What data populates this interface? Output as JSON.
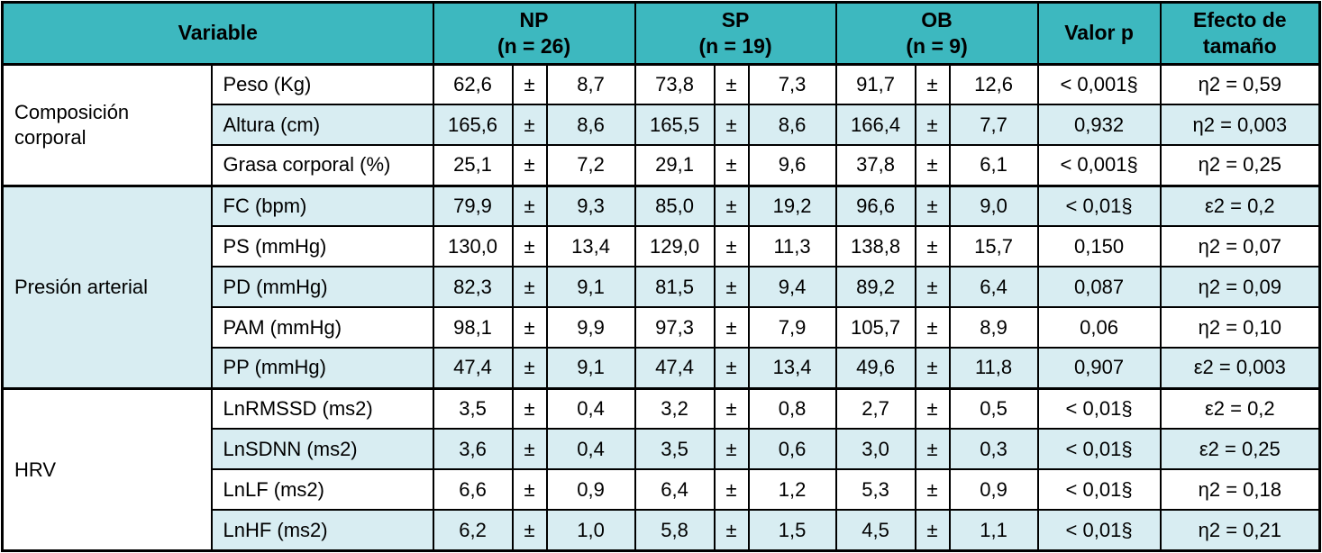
{
  "colors": {
    "header_bg": "#3db8bf",
    "row_alt_bg": "#d8edf2",
    "border": "#000000"
  },
  "table": {
    "header": {
      "variable_label": "Variable",
      "groups": [
        {
          "label": "NP",
          "n": "(n = 26)"
        },
        {
          "label": "SP",
          "n": "(n = 19)"
        },
        {
          "label": "OB",
          "n": "(n = 9)"
        }
      ],
      "p_label": "Valor p",
      "effect_label": "Efecto de tamaño"
    },
    "sections": [
      {
        "name": "Composición corporal",
        "rows": [
          {
            "variable": "Peso (Kg)",
            "np": [
              "62,6",
              "±",
              "8,7"
            ],
            "sp": [
              "73,8",
              "±",
              "7,3"
            ],
            "ob": [
              "91,7",
              "±",
              "12,6"
            ],
            "p": "< 0,001§",
            "effect": "η2 = 0,59"
          },
          {
            "variable": "Altura (cm)",
            "np": [
              "165,6",
              "±",
              "8,6"
            ],
            "sp": [
              "165,5",
              "±",
              "8,6"
            ],
            "ob": [
              "166,4",
              "±",
              "7,7"
            ],
            "p": "0,932",
            "effect": "η2 = 0,003"
          },
          {
            "variable": "Grasa corporal (%)",
            "np": [
              "25,1",
              "±",
              "7,2"
            ],
            "sp": [
              "29,1",
              "±",
              "9,6"
            ],
            "ob": [
              "37,8",
              "±",
              "6,1"
            ],
            "p": "< 0,001§",
            "effect": "η2 = 0,25"
          }
        ]
      },
      {
        "name": "Presión arterial",
        "rows": [
          {
            "variable": "FC (bpm)",
            "np": [
              "79,9",
              "±",
              "9,3"
            ],
            "sp": [
              "85,0",
              "±",
              "19,2"
            ],
            "ob": [
              "96,6",
              "±",
              "9,0"
            ],
            "p": "< 0,01§",
            "effect": "ε2 = 0,2"
          },
          {
            "variable": "PS (mmHg)",
            "np": [
              "130,0",
              "±",
              "13,4"
            ],
            "sp": [
              "129,0",
              "±",
              "11,3"
            ],
            "ob": [
              "138,8",
              "±",
              "15,7"
            ],
            "p": "0,150",
            "effect": "η2 = 0,07"
          },
          {
            "variable": "PD (mmHg)",
            "np": [
              "82,3",
              "±",
              "9,1"
            ],
            "sp": [
              "81,5",
              "±",
              "9,4"
            ],
            "ob": [
              "89,2",
              "±",
              "6,4"
            ],
            "p": "0,087",
            "effect": "η2 = 0,09"
          },
          {
            "variable": "PAM (mmHg)",
            "np": [
              "98,1",
              "±",
              "9,9"
            ],
            "sp": [
              "97,3",
              "±",
              "7,9"
            ],
            "ob": [
              "105,7",
              "±",
              "8,9"
            ],
            "p": "0,06",
            "effect": "η2 = 0,10"
          },
          {
            "variable": "PP (mmHg)",
            "np": [
              "47,4",
              "±",
              "9,1"
            ],
            "sp": [
              "47,4",
              "±",
              "13,4"
            ],
            "ob": [
              "49,6",
              "±",
              "11,8"
            ],
            "p": "0,907",
            "effect": "ε2 = 0,003"
          }
        ]
      },
      {
        "name": "HRV",
        "rows": [
          {
            "variable": "LnRMSSD (ms2)",
            "np": [
              "3,5",
              "±",
              "0,4"
            ],
            "sp": [
              "3,2",
              "±",
              "0,8"
            ],
            "ob": [
              "2,7",
              "±",
              "0,5"
            ],
            "p": "< 0,01§",
            "effect": "ε2 = 0,2"
          },
          {
            "variable": "LnSDNN (ms2)",
            "np": [
              "3,6",
              "±",
              "0,4"
            ],
            "sp": [
              "3,5",
              "±",
              "0,6"
            ],
            "ob": [
              "3,0",
              "±",
              "0,3"
            ],
            "p": "< 0,01§",
            "effect": "ε2 = 0,25"
          },
          {
            "variable": "LnLF (ms2)",
            "np": [
              "6,6",
              "±",
              "0,9"
            ],
            "sp": [
              "6,4",
              "±",
              "1,2"
            ],
            "ob": [
              "5,3",
              "±",
              "0,9"
            ],
            "p": "< 0,01§",
            "effect": "η2 = 0,18"
          },
          {
            "variable": "LnHF (ms2)",
            "np": [
              "6,2",
              "±",
              "1,0"
            ],
            "sp": [
              "5,8",
              "±",
              "1,5"
            ],
            "ob": [
              "4,5",
              "±",
              "1,1"
            ],
            "p": "< 0,01§",
            "effect": "η2 = 0,21"
          }
        ]
      }
    ]
  }
}
